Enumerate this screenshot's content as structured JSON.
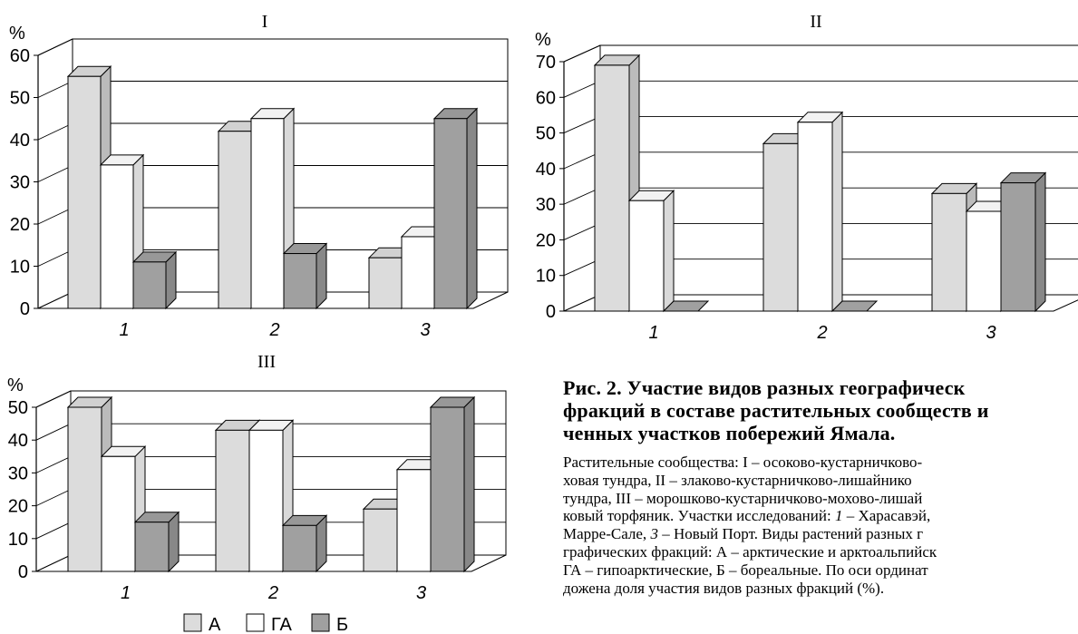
{
  "chart_data": [
    {
      "type": "bar",
      "title": "I",
      "ylabel": "%",
      "ylim": [
        0,
        60
      ],
      "yticks": [
        0,
        10,
        20,
        30,
        40,
        50,
        60
      ],
      "categories": [
        "1",
        "2",
        "3"
      ],
      "series": [
        {
          "name": "А",
          "values": [
            55,
            42,
            12
          ]
        },
        {
          "name": "ГА",
          "values": [
            34,
            45,
            17
          ]
        },
        {
          "name": "Б",
          "values": [
            11,
            13,
            45
          ]
        }
      ]
    },
    {
      "type": "bar",
      "title": "II",
      "ylabel": "%",
      "ylim": [
        0,
        70
      ],
      "yticks": [
        0,
        10,
        20,
        30,
        40,
        50,
        60,
        70
      ],
      "categories": [
        "1",
        "2",
        "3"
      ],
      "series": [
        {
          "name": "А",
          "values": [
            69,
            47,
            33
          ]
        },
        {
          "name": "ГА",
          "values": [
            31,
            53,
            28
          ]
        },
        {
          "name": "Б",
          "values": [
            0,
            0,
            36
          ]
        }
      ]
    },
    {
      "type": "bar",
      "title": "III",
      "ylabel": "%",
      "ylim": [
        0,
        50
      ],
      "yticks": [
        0,
        10,
        20,
        30,
        40,
        50
      ],
      "categories": [
        "1",
        "2",
        "3"
      ],
      "series": [
        {
          "name": "А",
          "values": [
            50,
            43,
            19
          ]
        },
        {
          "name": "ГА",
          "values": [
            35,
            43,
            31
          ]
        },
        {
          "name": "Б",
          "values": [
            15,
            14,
            50
          ]
        }
      ]
    }
  ],
  "legend": [
    {
      "label": "А",
      "color": "#dcdcdc"
    },
    {
      "label": "ГА",
      "color": "#ffffff"
    },
    {
      "label": "Б",
      "color": "#a0a0a0"
    }
  ],
  "caption": {
    "title_lines": [
      "Рис. 2. Участие видов разных географическ",
      "фракций в составе растительных сообществ и",
      "ченных участков побережий Ямала."
    ],
    "body_lines": [
      [
        {
          "t": "Растительные сообщества: I – осоково-кустарничково-"
        }
      ],
      [
        {
          "t": "ховая тундра, II – злаково-кустарничково-лишайнико"
        }
      ],
      [
        {
          "t": "тундра, III – морошково-кустарничково-мохово-лишай"
        }
      ],
      [
        {
          "t": "ковый торфяник. Участки исследований: "
        },
        {
          "t": "1",
          "i": true
        },
        {
          "t": " – Харасавэй,"
        }
      ],
      [
        {
          "t": "Марре-Сале, "
        },
        {
          "t": "3",
          "i": true
        },
        {
          "t": " – Новый Порт. Виды растений разных г"
        }
      ],
      [
        {
          "t": "графических фракций: А – арктические и арктоальпийск"
        }
      ],
      [
        {
          "t": "ГА – гипоарктические, Б – бореальные. По оси ординат"
        }
      ],
      [
        {
          "t": "дожена доля участия видов разных фракций (%)."
        }
      ]
    ]
  }
}
